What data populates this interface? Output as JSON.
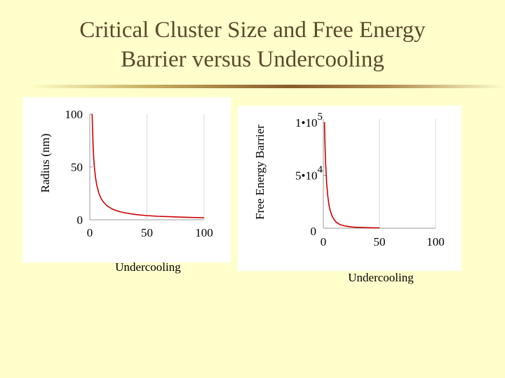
{
  "slide": {
    "title_line1": "Critical Cluster Size and Free Energy",
    "title_line2": "Barrier versus Undercooling"
  },
  "colors": {
    "background": "#ffffcc",
    "curve": "#cc0000",
    "title": "#5a4a2a"
  },
  "chart_data": [
    {
      "type": "line",
      "xlabel": "Undercooling",
      "ylabel": "Radius (nm)",
      "xlim": [
        0,
        100
      ],
      "ylim": [
        0,
        100
      ],
      "xticks": [
        0,
        50,
        100
      ],
      "xtick_labels": [
        "0",
        "50",
        "100"
      ],
      "yticks": [
        0,
        50,
        100
      ],
      "ytick_labels": [
        "0",
        "50",
        "100"
      ],
      "series": [
        {
          "x": [
            2,
            3,
            4,
            5,
            6,
            8,
            10,
            12,
            15,
            20,
            25,
            30,
            40,
            50,
            60,
            70,
            80,
            90,
            100
          ],
          "y": [
            100,
            66.7,
            50,
            40,
            33.3,
            25,
            20,
            16.7,
            13.3,
            10,
            8,
            6.7,
            5,
            4,
            3.3,
            2.9,
            2.5,
            2.2,
            2
          ]
        }
      ]
    },
    {
      "type": "line",
      "xlabel": "Undercooling",
      "ylabel": "Free Energy Barrier",
      "xlim": [
        0,
        100
      ],
      "ylim": [
        0,
        120000
      ],
      "xticks": [
        0,
        50,
        100
      ],
      "xtick_labels": [
        "0",
        "50",
        "100"
      ],
      "yticks": [
        0,
        50000,
        100000
      ],
      "ytick_labels": [
        {
          "mantissa": "0",
          "exponent": ""
        },
        {
          "mantissa": "5•10",
          "exponent": "4"
        },
        {
          "mantissa": "1•10",
          "exponent": "5"
        }
      ],
      "series": [
        {
          "x": [
            1,
            1.5,
            2,
            3,
            4,
            5,
            6,
            8,
            10,
            12,
            15,
            20,
            25,
            30,
            40,
            50
          ],
          "y": [
            100000,
            78000,
            62000,
            42000,
            30000,
            22000,
            17000,
            11000,
            7500,
            5200,
            3300,
            1900,
            1200,
            800,
            450,
            290
          ]
        }
      ]
    }
  ]
}
